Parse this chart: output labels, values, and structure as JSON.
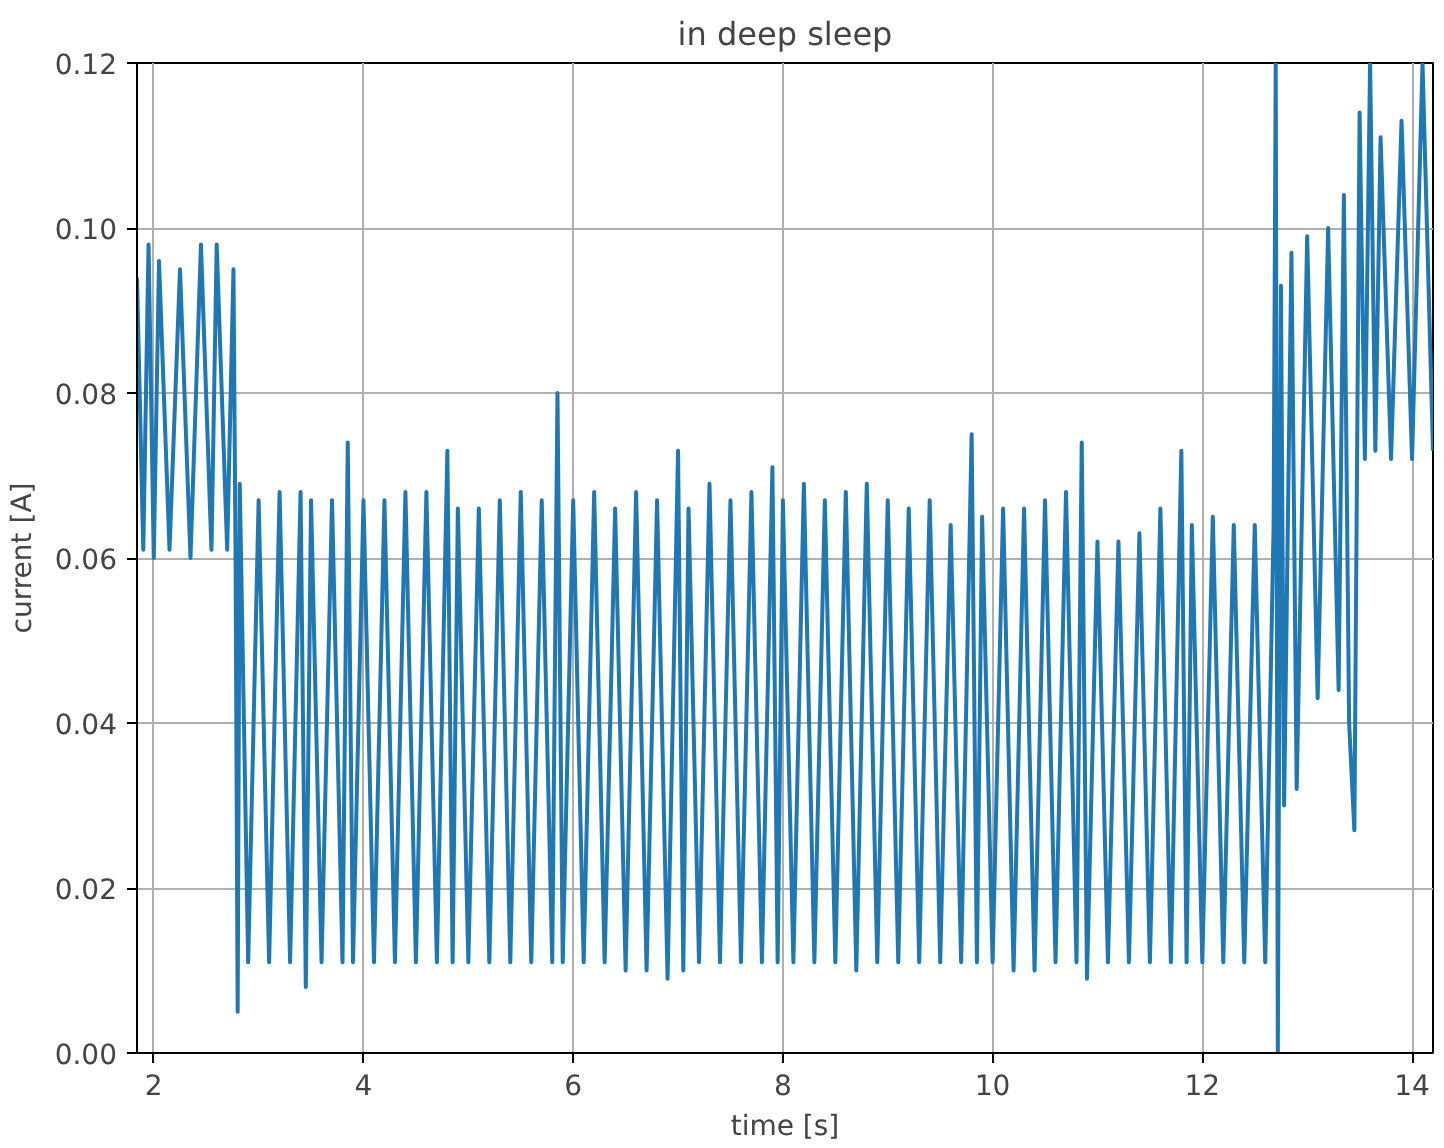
{
  "chart_data": {
    "type": "line",
    "title": "in deep sleep",
    "xlabel": "time [s]",
    "ylabel": "current [A]",
    "xlim": [
      1.84,
      14.2
    ],
    "ylim": [
      0,
      0.12
    ],
    "xticks": [
      2,
      4,
      6,
      8,
      10,
      12,
      14
    ],
    "yticks": [
      {
        "value": 0,
        "label": "0.00"
      },
      {
        "value": 0.02,
        "label": "0.02"
      },
      {
        "value": 0.04,
        "label": "0.04"
      },
      {
        "value": 0.06,
        "label": "0.06"
      },
      {
        "value": 0.08,
        "label": "0.08"
      },
      {
        "value": 0.1,
        "label": "0.10"
      },
      {
        "value": 0.12,
        "label": "0.12"
      }
    ],
    "grid": true,
    "line_style": "solid",
    "series": [
      {
        "color": "#1f77b4",
        "x": [
          1.84,
          1.9,
          1.95,
          2.0,
          2.05,
          2.15,
          2.25,
          2.35,
          2.45,
          2.55,
          2.6,
          2.7,
          2.76,
          2.78,
          2.8,
          2.82,
          2.9,
          3.0,
          3.1,
          3.2,
          3.3,
          3.4,
          3.45,
          3.5,
          3.6,
          3.7,
          3.8,
          3.85,
          3.9,
          4.0,
          4.1,
          4.2,
          4.3,
          4.4,
          4.5,
          4.6,
          4.7,
          4.8,
          4.85,
          4.9,
          5.0,
          5.1,
          5.2,
          5.3,
          5.4,
          5.5,
          5.6,
          5.7,
          5.8,
          5.85,
          5.9,
          6.0,
          6.1,
          6.2,
          6.3,
          6.4,
          6.5,
          6.6,
          6.7,
          6.8,
          6.9,
          7.0,
          7.05,
          7.1,
          7.2,
          7.3,
          7.4,
          7.5,
          7.6,
          7.7,
          7.8,
          7.9,
          7.95,
          8.0,
          8.1,
          8.2,
          8.3,
          8.4,
          8.5,
          8.6,
          8.7,
          8.8,
          8.9,
          9.0,
          9.1,
          9.2,
          9.3,
          9.4,
          9.5,
          9.6,
          9.7,
          9.8,
          9.85,
          9.9,
          10.0,
          10.1,
          10.2,
          10.3,
          10.4,
          10.5,
          10.6,
          10.7,
          10.8,
          10.85,
          10.9,
          11.0,
          11.1,
          11.2,
          11.3,
          11.4,
          11.5,
          11.6,
          11.7,
          11.8,
          11.85,
          11.9,
          12.0,
          12.1,
          12.2,
          12.3,
          12.4,
          12.5,
          12.6,
          12.68,
          12.7,
          12.72,
          12.75,
          12.78,
          12.85,
          12.9,
          13.0,
          13.1,
          13.2,
          13.3,
          13.35,
          13.4,
          13.45,
          13.5,
          13.55,
          13.6,
          13.65,
          13.7,
          13.8,
          13.9,
          14.0,
          14.1,
          14.2
        ],
        "values": [
          0.094,
          0.061,
          0.098,
          0.06,
          0.096,
          0.061,
          0.095,
          0.06,
          0.098,
          0.061,
          0.098,
          0.061,
          0.095,
          0.06,
          0.005,
          0.069,
          0.011,
          0.067,
          0.011,
          0.068,
          0.011,
          0.068,
          0.008,
          0.067,
          0.011,
          0.067,
          0.011,
          0.074,
          0.011,
          0.067,
          0.011,
          0.067,
          0.011,
          0.068,
          0.011,
          0.068,
          0.011,
          0.073,
          0.011,
          0.066,
          0.011,
          0.066,
          0.011,
          0.067,
          0.011,
          0.068,
          0.011,
          0.067,
          0.011,
          0.08,
          0.011,
          0.067,
          0.011,
          0.068,
          0.011,
          0.066,
          0.01,
          0.068,
          0.01,
          0.067,
          0.009,
          0.073,
          0.01,
          0.066,
          0.011,
          0.069,
          0.011,
          0.067,
          0.011,
          0.068,
          0.011,
          0.071,
          0.011,
          0.067,
          0.011,
          0.069,
          0.011,
          0.067,
          0.011,
          0.068,
          0.01,
          0.069,
          0.011,
          0.067,
          0.011,
          0.066,
          0.011,
          0.067,
          0.011,
          0.064,
          0.011,
          0.075,
          0.011,
          0.065,
          0.011,
          0.066,
          0.01,
          0.066,
          0.01,
          0.067,
          0.011,
          0.068,
          0.011,
          0.074,
          0.009,
          0.062,
          0.011,
          0.062,
          0.011,
          0.063,
          0.011,
          0.066,
          0.011,
          0.073,
          0.011,
          0.064,
          0.011,
          0.065,
          0.011,
          0.064,
          0.011,
          0.064,
          0.011,
          0.064,
          0.12,
          0.0,
          0.093,
          0.03,
          0.097,
          0.032,
          0.099,
          0.043,
          0.1,
          0.044,
          0.104,
          0.04,
          0.027,
          0.114,
          0.072,
          0.12,
          0.073,
          0.111,
          0.072,
          0.113,
          0.072,
          0.12,
          0.073
        ]
      }
    ]
  }
}
